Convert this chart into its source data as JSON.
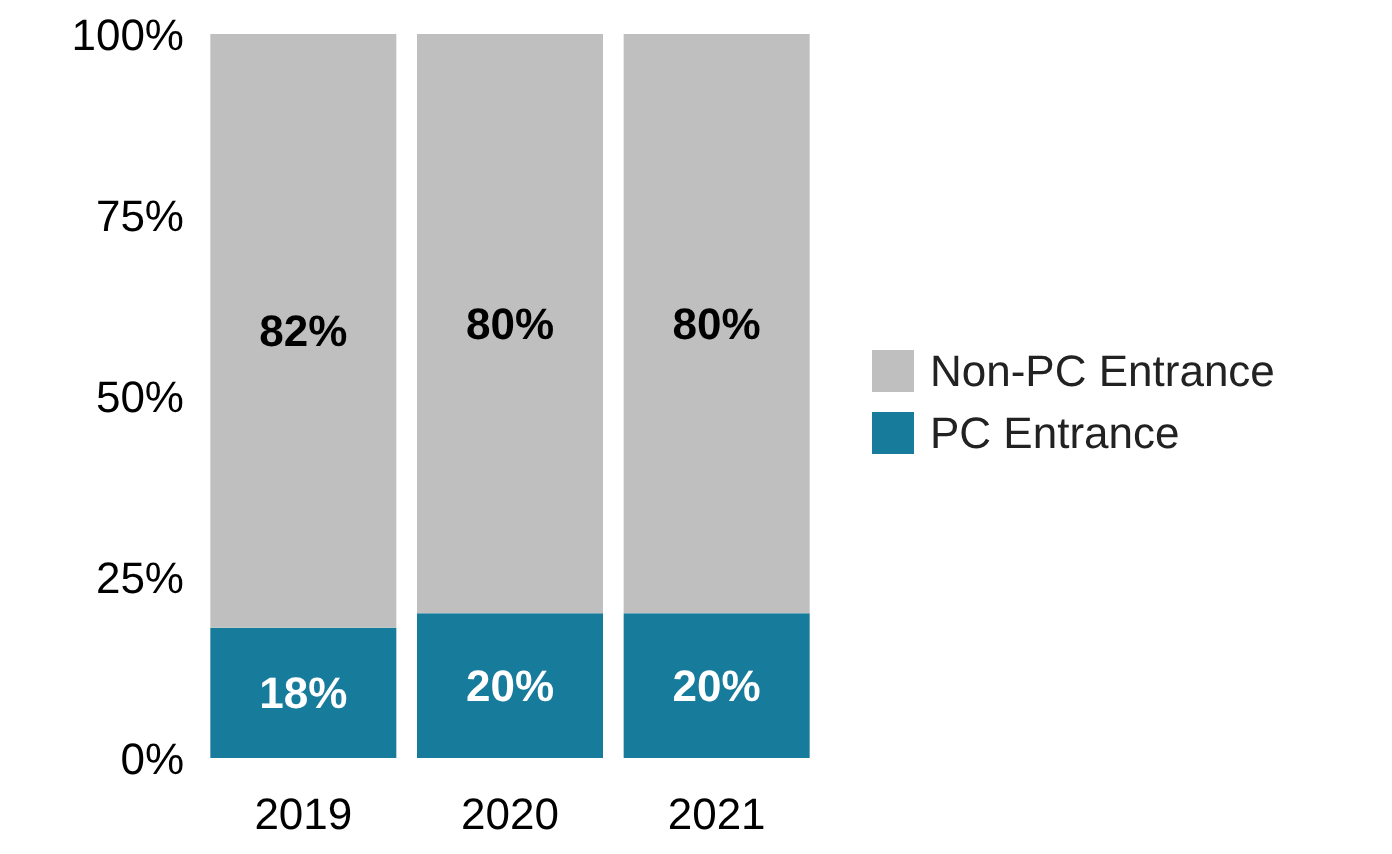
{
  "chart_data": {
    "type": "bar",
    "stacked": true,
    "categories": [
      "2019",
      "2020",
      "2021"
    ],
    "series": [
      {
        "name": "PC Entrance",
        "color": "#177b9b",
        "values": [
          18,
          20,
          20
        ],
        "value_labels": [
          "18%",
          "20%",
          "20%"
        ]
      },
      {
        "name": "Non-PC Entrance",
        "color": "#bfbfbf",
        "values": [
          82,
          80,
          80
        ],
        "value_labels": [
          "82%",
          "80%",
          "80%"
        ]
      }
    ],
    "ylim": [
      0,
      100
    ],
    "yticks": [
      {
        "value": 0,
        "label": "0%"
      },
      {
        "value": 25,
        "label": "25%"
      },
      {
        "value": 50,
        "label": "50%"
      },
      {
        "value": 75,
        "label": "75%"
      },
      {
        "value": 100,
        "label": "100%"
      }
    ],
    "grid": false,
    "legend": "right"
  }
}
